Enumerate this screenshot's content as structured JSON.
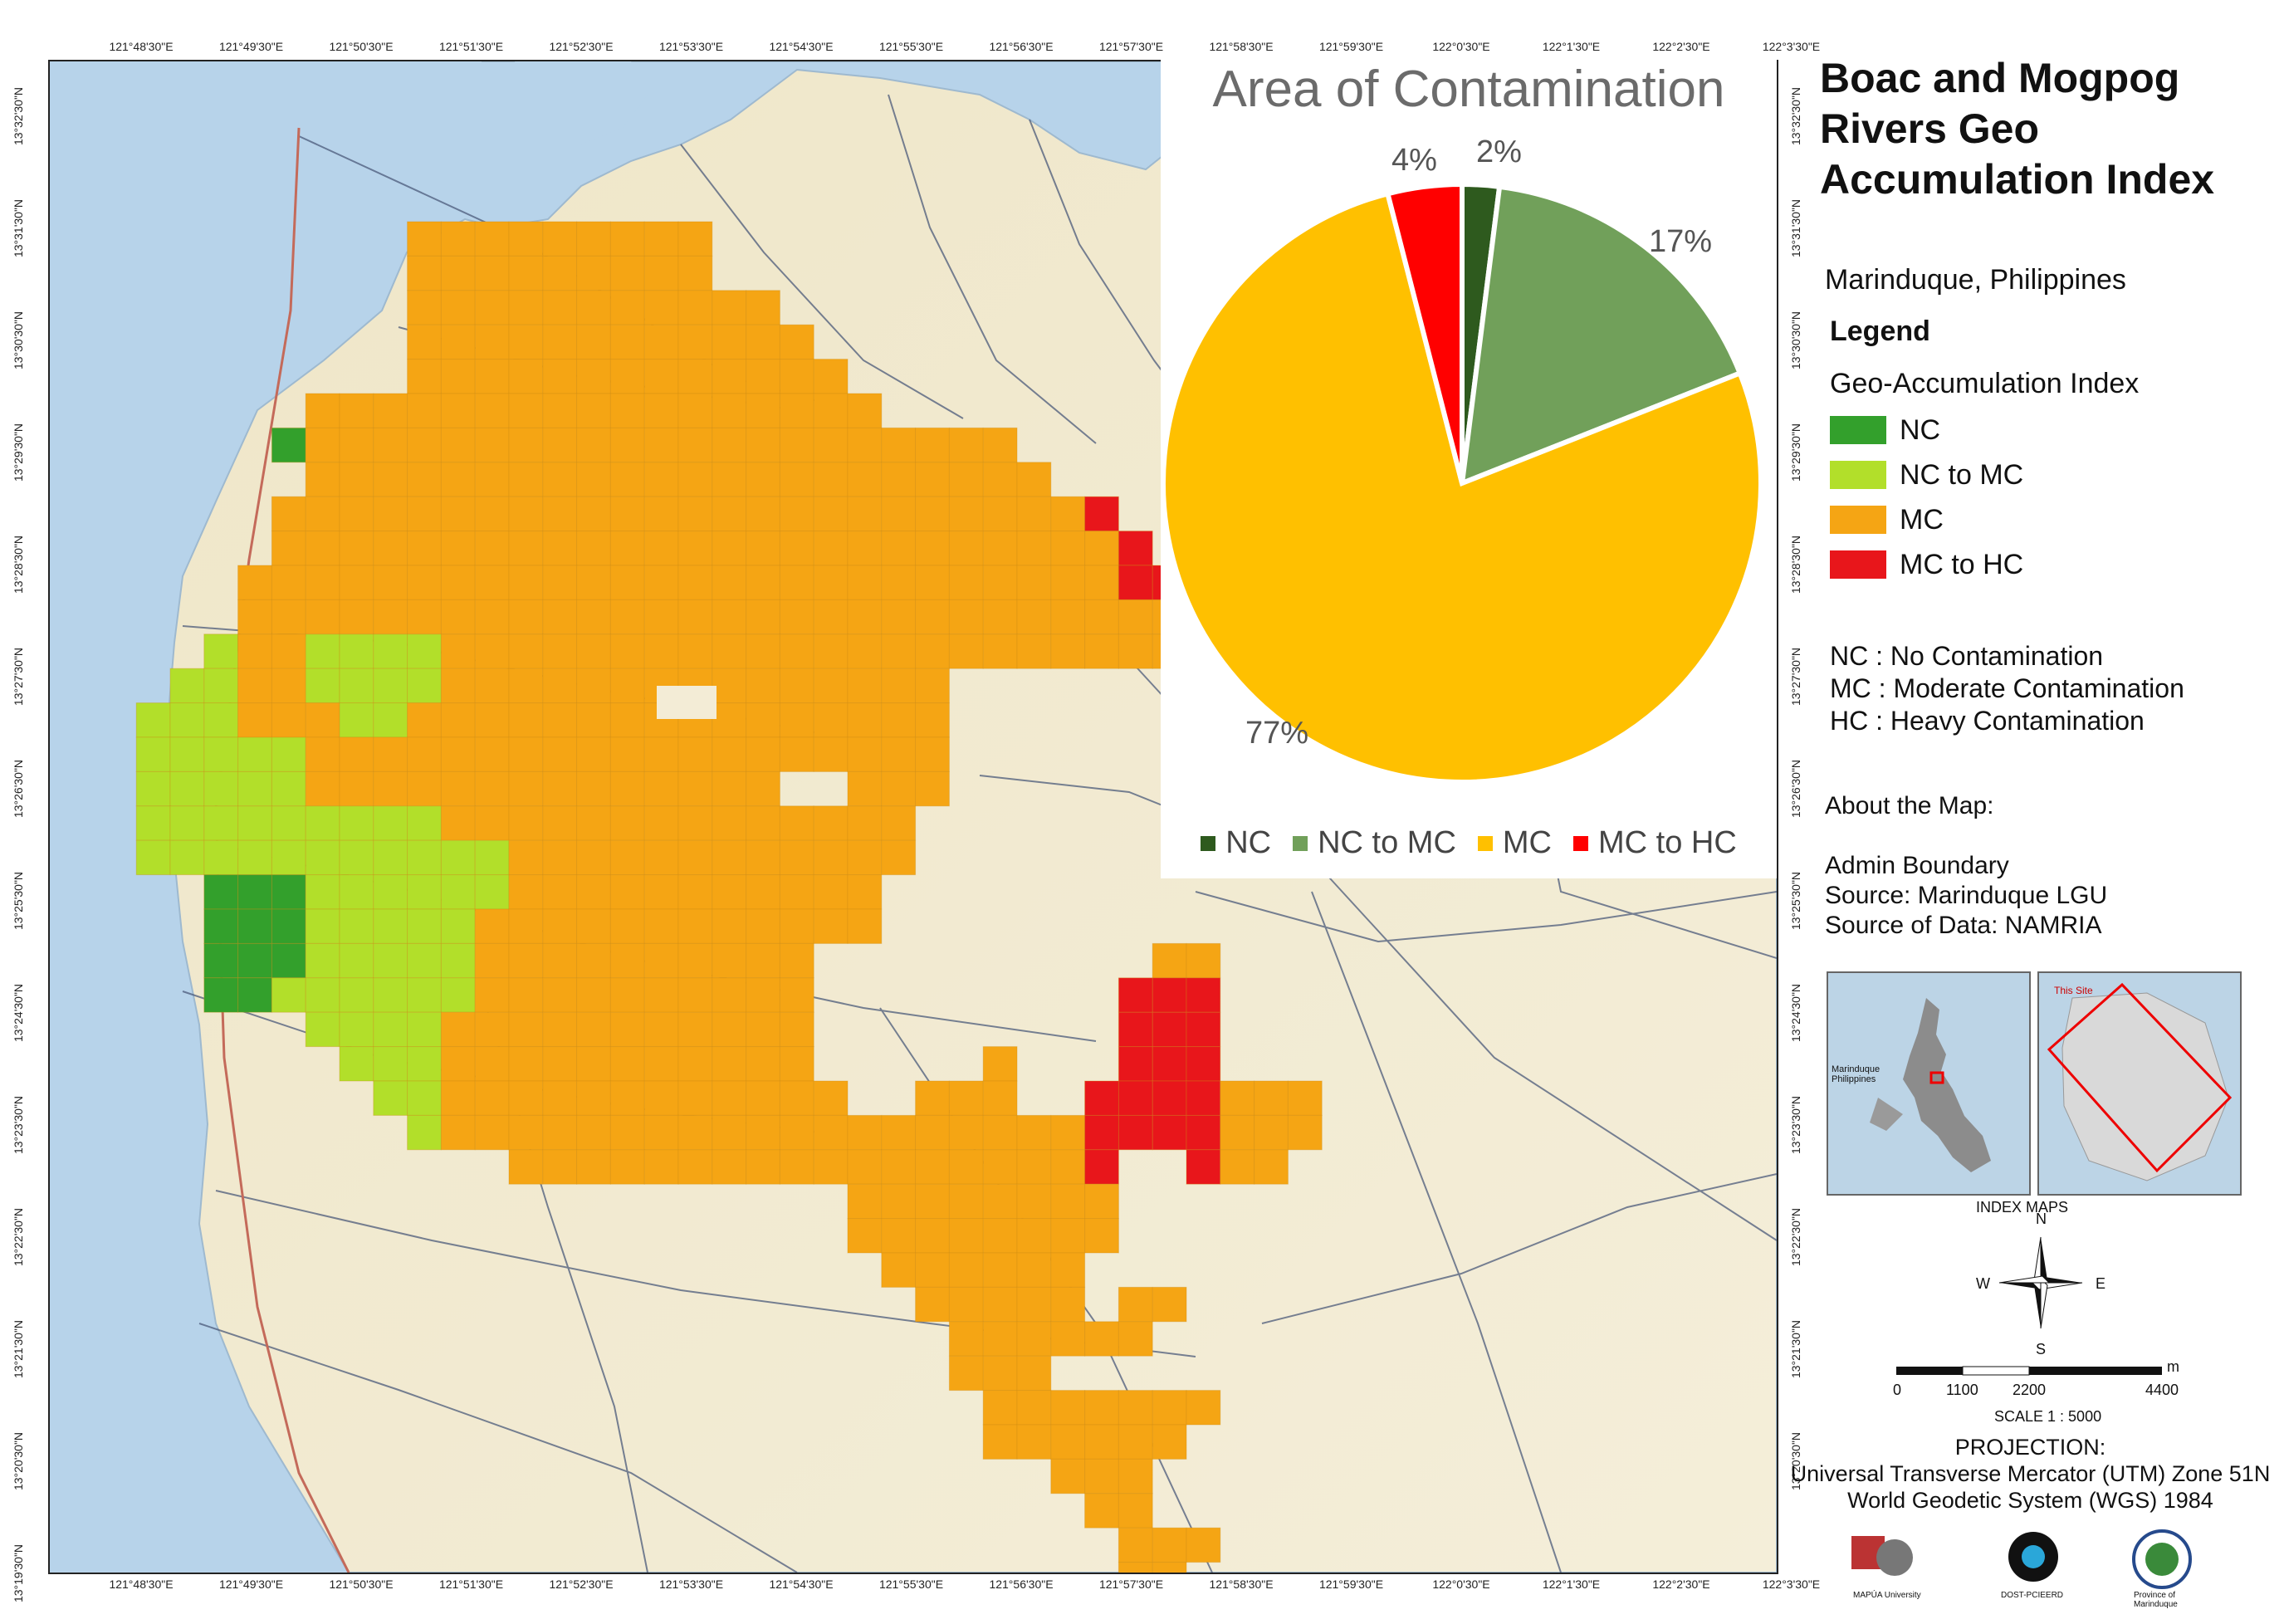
{
  "map_title": "Boac and Mogpog Rivers Geo Accumulation Index",
  "location": "Marinduque, Philippines",
  "legend": {
    "heading": "Legend",
    "subheading": "Geo-Accumulation Index",
    "items": [
      {
        "label": "NC",
        "color": "#33a02c"
      },
      {
        "label": "NC to MC",
        "color": "#b2df2a"
      },
      {
        "label": "MC",
        "color": "#f5a514"
      },
      {
        "label": "MC to HC",
        "color": "#e8161b"
      }
    ],
    "abbreviations": [
      "NC : No Contamination",
      "MC : Moderate Contamination",
      "HC : Heavy Contamination"
    ]
  },
  "about": {
    "heading": "About the Map:",
    "lines": [
      "Admin Boundary",
      "Source: Marinduque LGU",
      "Source of Data: NAMRIA"
    ]
  },
  "index_maps": {
    "caption": "INDEX MAPS",
    "inset1_label": "Marinduque Philippines",
    "inset2_label": "This Site"
  },
  "compass": {
    "n": "N",
    "s": "S",
    "e": "E",
    "w": "W"
  },
  "scale": {
    "unit": "m",
    "ticks": [
      "0",
      "1100",
      "2200",
      "4400"
    ],
    "text": "SCALE 1 : 5000"
  },
  "projection": {
    "heading": "PROJECTION:",
    "line1": "Universal Transverse Mercator (UTM) Zone 51N",
    "line2": "World Geodetic System (WGS) 1984"
  },
  "logos": [
    "MAPÚA University",
    "DOST-PCIEERD",
    "Province of Marinduque"
  ],
  "coordinates": {
    "top": [
      "121°48'30\"E",
      "121°49'30\"E",
      "121°50'30\"E",
      "121°51'30\"E",
      "121°52'30\"E",
      "121°53'30\"E",
      "121°54'30\"E",
      "121°55'30\"E",
      "121°56'30\"E",
      "121°57'30\"E",
      "121°58'30\"E",
      "121°59'30\"E",
      "122°0'30\"E",
      "122°1'30\"E",
      "122°2'30\"E",
      "122°3'30\"E"
    ],
    "bottom": [
      "121°48'30\"E",
      "121°49'30\"E",
      "121°50'30\"E",
      "121°51'30\"E",
      "121°52'30\"E",
      "121°53'30\"E",
      "121°54'30\"E",
      "121°55'30\"E",
      "121°56'30\"E",
      "121°57'30\"E",
      "121°58'30\"E",
      "121°59'30\"E",
      "122°0'30\"E",
      "122°1'30\"E",
      "122°2'30\"E",
      "122°3'30\"E"
    ],
    "left": [
      "13°32'30\"N",
      "13°31'30\"N",
      "13°30'30\"N",
      "13°29'30\"N",
      "13°28'30\"N",
      "13°27'30\"N",
      "13°26'30\"N",
      "13°25'30\"N",
      "13°24'30\"N",
      "13°23'30\"N",
      "13°22'30\"N",
      "13°21'30\"N",
      "13°20'30\"N",
      "13°19'30\"N"
    ],
    "right": [
      "13°32'30\"N",
      "13°31'30\"N",
      "13°30'30\"N",
      "13°29'30\"N",
      "13°28'30\"N",
      "13°27'30\"N",
      "13°26'30\"N",
      "13°25'30\"N",
      "13°24'30\"N",
      "13°23'30\"N",
      "13°22'30\"N",
      "13°21'30\"N",
      "13°20'30\"N"
    ]
  },
  "chart_data": {
    "type": "pie",
    "title": "Area of Contamination",
    "categories": [
      "NC",
      "NC to MC",
      "MC",
      "MC to HC"
    ],
    "values": [
      2,
      17,
      77,
      4
    ],
    "labels": [
      "2%",
      "17%",
      "77%",
      "4%"
    ],
    "colors": [
      "#2e5a1e",
      "#71a05a",
      "#ffc000",
      "#ff0000"
    ],
    "legend_position": "bottom"
  }
}
